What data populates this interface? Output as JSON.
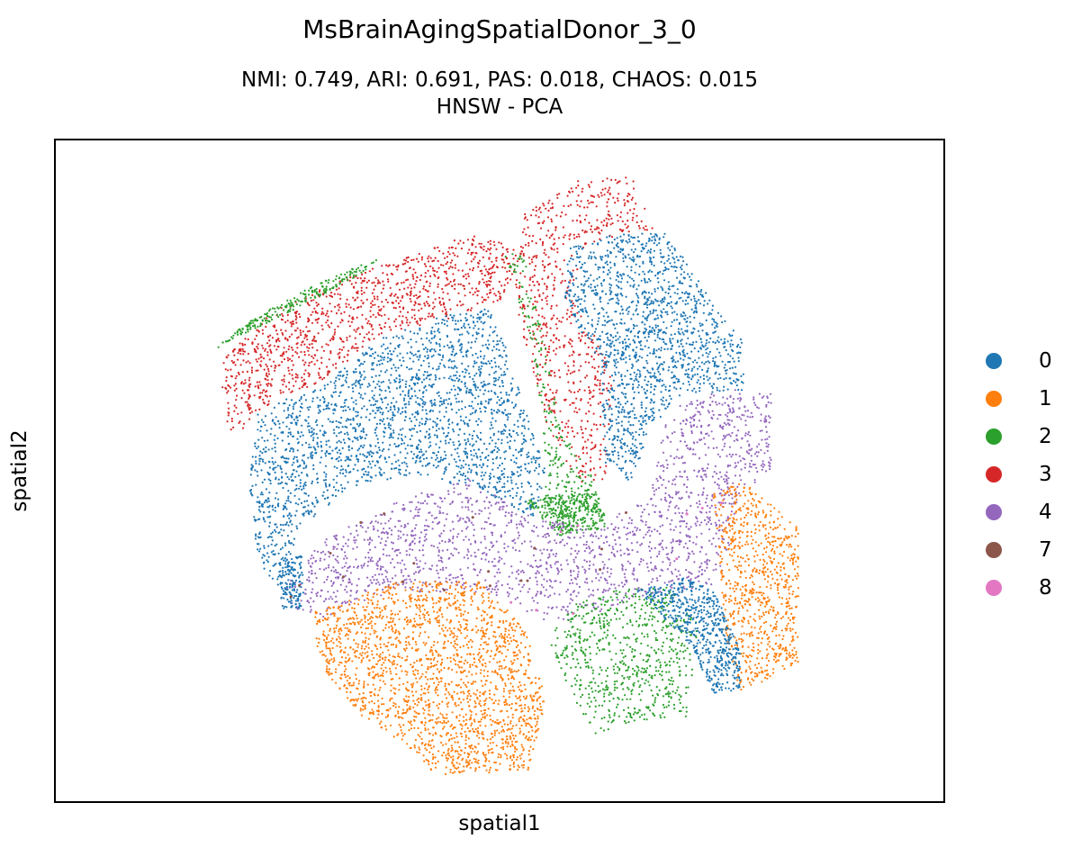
{
  "figure": {
    "title": "MsBrainAgingSpatialDonor_3_0",
    "subtitle_line1": "NMI: 0.749,  ARI: 0.691,  PAS: 0.018,  CHAOS: 0.015",
    "subtitle_line2": "HNSW - PCA"
  },
  "chart_data": {
    "type": "scatter",
    "title": "MsBrainAgingSpatialDonor_3_0",
    "subtitle": "NMI: 0.749,  ARI: 0.691,  PAS: 0.018,  CHAOS: 0.015 / HNSW - PCA",
    "xlabel": "spatial1",
    "ylabel": "spatial2",
    "xticks": [],
    "yticks": [],
    "grid": false,
    "legend_position": "right, outside plot",
    "metrics": {
      "NMI": 0.749,
      "ARI": 0.691,
      "PAS": 0.018,
      "CHAOS": 0.015
    },
    "method": "HNSW - PCA",
    "series": [
      {
        "name": "0",
        "color": "#1f77b4"
      },
      {
        "name": "1",
        "color": "#ff7f0e"
      },
      {
        "name": "2",
        "color": "#2ca02c"
      },
      {
        "name": "3",
        "color": "#d62728"
      },
      {
        "name": "4",
        "color": "#9467bd"
      },
      {
        "name": "7",
        "color": "#8c564b"
      },
      {
        "name": "8",
        "color": "#e377c2"
      }
    ]
  }
}
